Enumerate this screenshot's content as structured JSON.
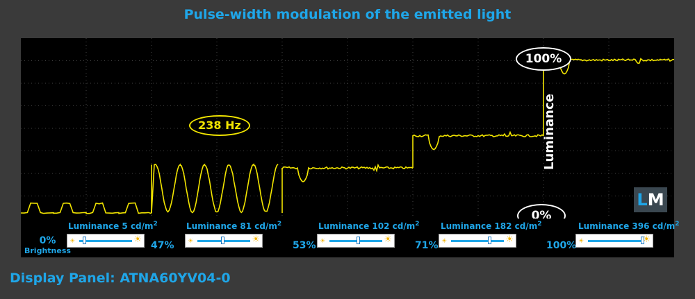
{
  "title": "Pulse-width modulation of the emitted light",
  "panel": "Display Panel: ATNA60YV04-0",
  "ylabel": "Luminance",
  "logo": {
    "l": "L",
    "m": "M"
  },
  "marker_top": "100%",
  "marker_bottom": "0%",
  "frequency": "238 Hz",
  "colors": {
    "trace": "#f2e500",
    "accent": "#1fa6e8",
    "background": "#3a3a3a"
  },
  "brightness_caption": "Brightness",
  "chart_data": {
    "type": "line",
    "title": "Pulse-width modulation of the emitted light",
    "ylabel": "Luminance",
    "ylim": [
      0,
      100
    ],
    "series": [
      {
        "brightness": "0%",
        "luminance_label": "Luminance",
        "luminance_value": "5 cd/m",
        "luminance_unit_sup": "2",
        "slider_level": 0.1,
        "level": 2,
        "pwm": true
      },
      {
        "brightness": "47%",
        "luminance_label": "Luminance",
        "luminance_value": "81 cd/m",
        "luminance_unit_sup": "2",
        "slider_level": 0.47,
        "level": 30,
        "pwm": true
      },
      {
        "brightness": "53%",
        "luminance_label": "Luminance",
        "luminance_value": "102 cd/m",
        "luminance_unit_sup": "2",
        "slider_level": 0.53,
        "level": 28,
        "pwm": false
      },
      {
        "brightness": "71%",
        "luminance_label": "Luminance",
        "luminance_value": "182 cd/m",
        "luminance_unit_sup": "2",
        "slider_level": 0.71,
        "level": 48,
        "pwm": false
      },
      {
        "brightness": "100%",
        "luminance_label": "Luminance",
        "luminance_value": "396 cd/m",
        "luminance_unit_sup": "2",
        "slider_level": 1.0,
        "level": 95,
        "pwm": false
      }
    ]
  }
}
